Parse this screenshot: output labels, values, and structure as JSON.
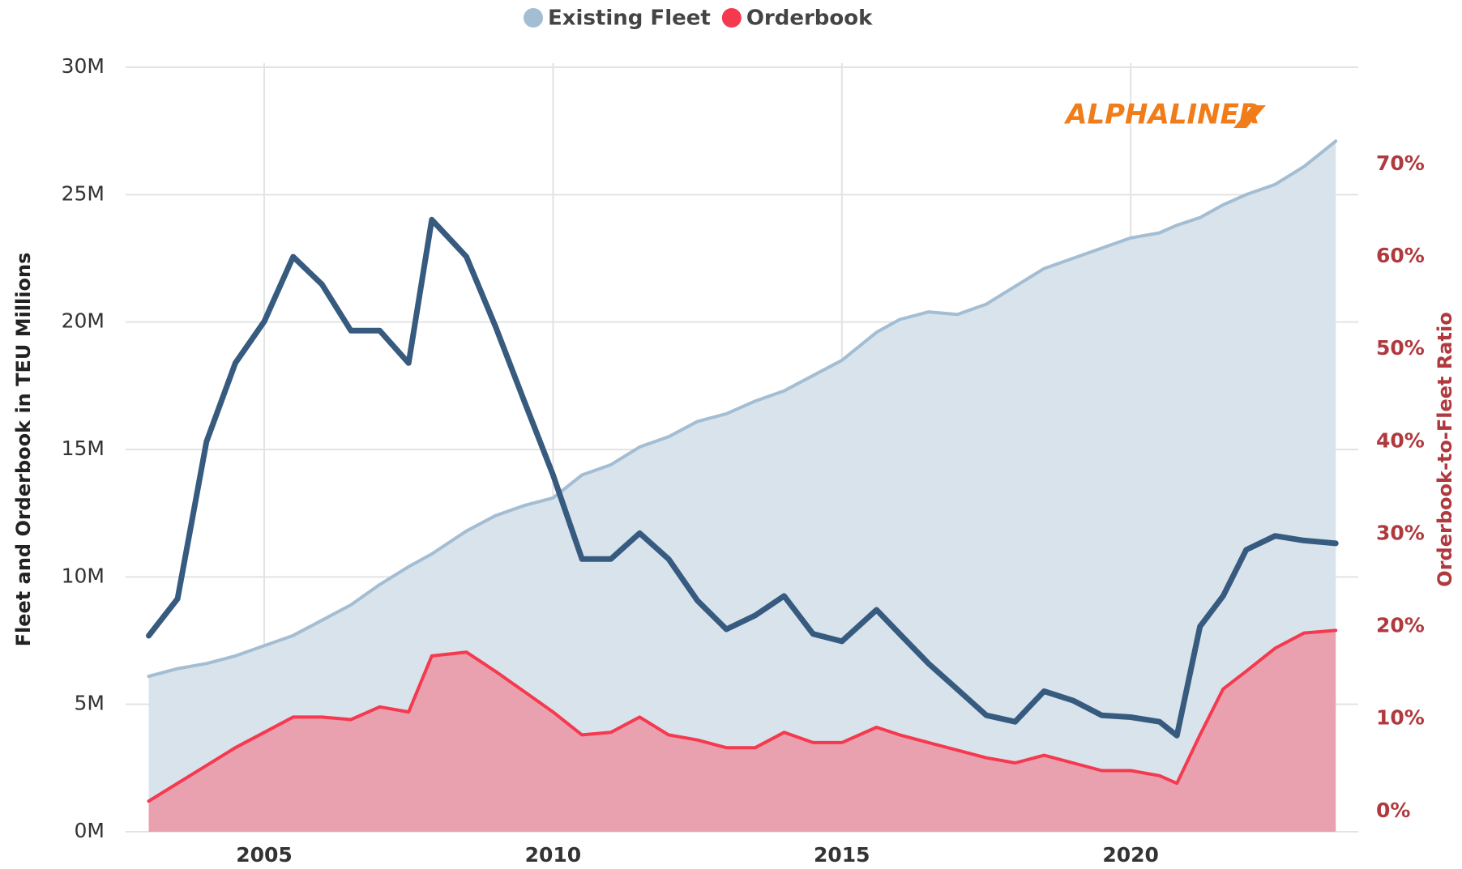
{
  "chart_data": {
    "type": "area",
    "ylabel": "Fleet and Orderbook in TEU Millions",
    "y2label": "Orderbook-to-Fleet Ratio",
    "annotation": "ALPHALINER",
    "x": [
      2003,
      2003.5,
      2004,
      2004.5,
      2005,
      2005.5,
      2006,
      2006.5,
      2007,
      2007.5,
      2007.9,
      2008.5,
      2009,
      2009.5,
      2010,
      2010.5,
      2011,
      2011.5,
      2012,
      2012.5,
      2013,
      2013.5,
      2014,
      2014.5,
      2015,
      2015.6,
      2016,
      2016.5,
      2017,
      2017.5,
      2018,
      2018.5,
      2019,
      2019.5,
      2020,
      2020.5,
      2020.8,
      2021.2,
      2021.6,
      2022,
      2022.5,
      2023,
      2023.55
    ],
    "series": [
      {
        "name": "Existing Fleet",
        "color": "#a3bdd3",
        "fill": "#d9e3ec",
        "values": [
          6.1,
          6.4,
          6.6,
          6.9,
          7.3,
          7.7,
          8.3,
          8.9,
          9.7,
          10.4,
          10.9,
          11.8,
          12.4,
          12.8,
          13.1,
          14.0,
          14.4,
          15.1,
          15.5,
          16.1,
          16.4,
          16.9,
          17.3,
          17.9,
          18.5,
          19.6,
          20.1,
          20.4,
          20.3,
          20.7,
          21.4,
          22.1,
          22.5,
          22.9,
          23.3,
          23.5,
          23.8,
          24.1,
          24.6,
          25.0,
          25.4,
          26.1,
          27.1
        ]
      },
      {
        "name": "Orderbook",
        "color": "#f5394f",
        "fill": "#e9a1af",
        "values": [
          1.2,
          1.9,
          2.6,
          3.3,
          3.9,
          4.5,
          4.5,
          4.4,
          4.9,
          4.7,
          6.9,
          7.05,
          6.3,
          5.5,
          4.7,
          3.8,
          3.9,
          4.5,
          3.8,
          3.6,
          3.3,
          3.3,
          3.9,
          3.5,
          3.5,
          4.1,
          3.8,
          3.5,
          3.2,
          2.9,
          2.7,
          3.0,
          2.7,
          2.4,
          2.4,
          2.2,
          1.9,
          3.8,
          5.6,
          6.3,
          7.2,
          7.8,
          7.9
        ]
      },
      {
        "color": "#375a7f",
        "axis": "y2",
        "values": [
          19.0,
          23,
          40,
          48.5,
          53,
          60,
          57,
          52,
          52,
          48.5,
          64,
          60,
          52.5,
          44.4,
          36.4,
          27.3,
          27.3,
          30.1,
          27.3,
          22.8,
          19.7,
          21.2,
          23.3,
          19.2,
          18.4,
          21.8,
          19.2,
          16,
          13.2,
          10.4,
          9.7,
          13,
          12,
          10.4,
          10.2,
          9.7,
          8.2,
          20,
          23.3,
          28.3,
          29.8,
          29.3,
          29
        ]
      }
    ],
    "xlim": [
      2002.6,
      2023.94
    ],
    "xticks": [
      2005,
      2010,
      2015,
      2020
    ],
    "ylim": [
      0,
      30
    ],
    "yticks": [
      {
        "value": 0,
        "label": "0M"
      },
      {
        "value": 5,
        "label": "5M"
      },
      {
        "value": 10,
        "label": "10M"
      },
      {
        "value": 15,
        "label": "15M"
      },
      {
        "value": 20,
        "label": "20M"
      },
      {
        "value": 25,
        "label": "25M"
      },
      {
        "value": 30,
        "label": "30M"
      }
    ],
    "y2lim": [
      -2.2,
      80.5
    ],
    "y2ticks": [
      {
        "value": 0,
        "label": "0%"
      },
      {
        "value": 10,
        "label": "10%"
      },
      {
        "value": 20,
        "label": "20%"
      },
      {
        "value": 30,
        "label": "30%"
      },
      {
        "value": 40,
        "label": "40%"
      },
      {
        "value": 50,
        "label": "50%"
      },
      {
        "value": 60,
        "label": "60%"
      },
      {
        "value": 70,
        "label": "70%"
      }
    ],
    "grid": true,
    "legend": "top"
  }
}
